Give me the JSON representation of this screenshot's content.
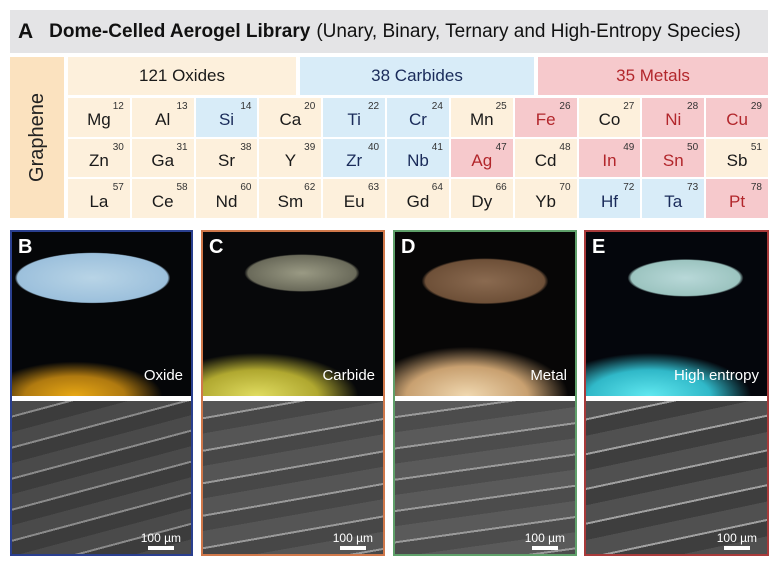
{
  "title": {
    "panel_letter": "A",
    "bold": "Dome-Celled Aerogel Library",
    "normal": "(Unary, Binary, Ternary and High-Entropy Species)"
  },
  "graphene_label": "Graphene",
  "categories": [
    {
      "label": "121 Oxides",
      "color": "#fdf0dc"
    },
    {
      "label": "38 Carbides",
      "color": "#d8ecf8"
    },
    {
      "label": "35 Metals",
      "color": "#f6c9cc"
    }
  ],
  "elements": [
    {
      "sym": "Mg",
      "num": "12",
      "type": "o"
    },
    {
      "sym": "Al",
      "num": "13",
      "type": "o"
    },
    {
      "sym": "Si",
      "num": "14",
      "type": "c"
    },
    {
      "sym": "Ca",
      "num": "20",
      "type": "o"
    },
    {
      "sym": "Ti",
      "num": "22",
      "type": "c"
    },
    {
      "sym": "Cr",
      "num": "24",
      "type": "c"
    },
    {
      "sym": "Mn",
      "num": "25",
      "type": "o"
    },
    {
      "sym": "Fe",
      "num": "26",
      "type": "m"
    },
    {
      "sym": "Co",
      "num": "27",
      "type": "o"
    },
    {
      "sym": "Ni",
      "num": "28",
      "type": "m"
    },
    {
      "sym": "Cu",
      "num": "29",
      "type": "m"
    },
    {
      "sym": "Zn",
      "num": "30",
      "type": "o"
    },
    {
      "sym": "Ga",
      "num": "31",
      "type": "o"
    },
    {
      "sym": "Sr",
      "num": "38",
      "type": "o"
    },
    {
      "sym": "Y",
      "num": "39",
      "type": "o"
    },
    {
      "sym": "Zr",
      "num": "40",
      "type": "c"
    },
    {
      "sym": "Nb",
      "num": "41",
      "type": "c"
    },
    {
      "sym": "Ag",
      "num": "47",
      "type": "m"
    },
    {
      "sym": "Cd",
      "num": "48",
      "type": "o"
    },
    {
      "sym": "In",
      "num": "49",
      "type": "m"
    },
    {
      "sym": "Sn",
      "num": "50",
      "type": "m"
    },
    {
      "sym": "Sb",
      "num": "51",
      "type": "o"
    },
    {
      "sym": "La",
      "num": "57",
      "type": "o"
    },
    {
      "sym": "Ce",
      "num": "58",
      "type": "o"
    },
    {
      "sym": "Nd",
      "num": "60",
      "type": "o"
    },
    {
      "sym": "Sm",
      "num": "62",
      "type": "o"
    },
    {
      "sym": "Eu",
      "num": "63",
      "type": "o"
    },
    {
      "sym": "Gd",
      "num": "64",
      "type": "o"
    },
    {
      "sym": "Dy",
      "num": "66",
      "type": "o"
    },
    {
      "sym": "Yb",
      "num": "70",
      "type": "o"
    },
    {
      "sym": "Hf",
      "num": "72",
      "type": "c"
    },
    {
      "sym": "Ta",
      "num": "73",
      "type": "c"
    },
    {
      "sym": "Pt",
      "num": "78",
      "type": "m"
    }
  ],
  "panels": [
    {
      "letter": "B",
      "caption": "Oxide",
      "scale": "100 µm",
      "border": "#2a3f8f"
    },
    {
      "letter": "C",
      "caption": "Carbide",
      "scale": "100 µm",
      "border": "#d0784a"
    },
    {
      "letter": "D",
      "caption": "Metal",
      "scale": "100 µm",
      "border": "#5fa06a"
    },
    {
      "letter": "E",
      "caption": "High entropy",
      "scale": "100 µm",
      "border": "#a83a3a"
    }
  ]
}
